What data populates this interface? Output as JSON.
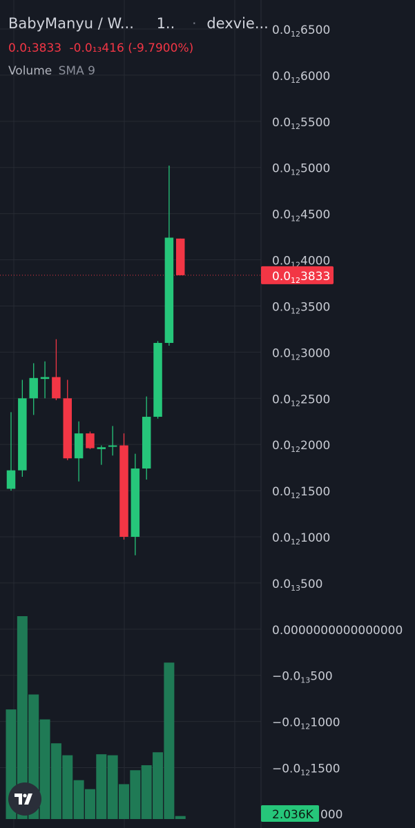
{
  "header": {
    "pair": "BabyManyu / W...",
    "interval": "1..",
    "source": "dexvie...",
    "price": "0.0₁3833",
    "change": "-0.0₁₃416",
    "change_pct": "(-9.7900%)",
    "volume_label": "Volume",
    "sma_label": "SMA 9"
  },
  "colors": {
    "background": "#161a23",
    "up": "#26c67a",
    "down": "#f23645",
    "volume_up": "#1f7a55",
    "volume_down": "#8a2b33",
    "grid": "#262a33",
    "text": "#d1d4dc",
    "axis_text": "#c8cbd3"
  },
  "price_axis": {
    "ticks": [
      {
        "value": 6500,
        "lead": "0.0",
        "sub": "12",
        "tail": "6500"
      },
      {
        "value": 6000,
        "lead": "0.0",
        "sub": "12",
        "tail": "6000"
      },
      {
        "value": 5500,
        "lead": "0.0",
        "sub": "12",
        "tail": "5500"
      },
      {
        "value": 5000,
        "lead": "0.0",
        "sub": "12",
        "tail": "5000"
      },
      {
        "value": 4500,
        "lead": "0.0",
        "sub": "12",
        "tail": "4500"
      },
      {
        "value": 4000,
        "lead": "0.0",
        "sub": "12",
        "tail": "4000"
      },
      {
        "value": 3500,
        "lead": "0.0",
        "sub": "12",
        "tail": "3500"
      },
      {
        "value": 3000,
        "lead": "0.0",
        "sub": "12",
        "tail": "3000"
      },
      {
        "value": 2500,
        "lead": "0.0",
        "sub": "12",
        "tail": "2500"
      },
      {
        "value": 2000,
        "lead": "0.0",
        "sub": "12",
        "tail": "2000"
      },
      {
        "value": 1500,
        "lead": "0.0",
        "sub": "12",
        "tail": "1500"
      },
      {
        "value": 1000,
        "lead": "0.0",
        "sub": "12",
        "tail": "1000"
      },
      {
        "value": 500,
        "lead": "0.0",
        "sub": "13",
        "tail": "500"
      },
      {
        "value": 0,
        "lead": "0.0000000000000000",
        "sub": "",
        "tail": ""
      },
      {
        "value": -500,
        "lead": "−0.0",
        "sub": "13",
        "tail": "500"
      },
      {
        "value": -1000,
        "lead": "−0.0",
        "sub": "12",
        "tail": "1000"
      },
      {
        "value": -1500,
        "lead": "−0.0",
        "sub": "12",
        "tail": "1500"
      }
    ],
    "current_price": {
      "value": 3833,
      "lead": "0.0",
      "sub": "12",
      "tail": "3833"
    },
    "volume_tag": "2.036K",
    "volume_tag_tail": "000"
  },
  "chart_data": {
    "type": "candlestick",
    "price_unit_note": "values in units of 1e-16",
    "ylim": [
      -1500,
      6500
    ],
    "candles": [
      {
        "o": 1520,
        "h": 2350,
        "l": 1500,
        "c": 1720,
        "vol": 1100
      },
      {
        "o": 1720,
        "h": 2700,
        "l": 1650,
        "c": 2500,
        "vol": 2036
      },
      {
        "o": 2500,
        "h": 2880,
        "l": 2320,
        "c": 2720,
        "vol": 1250
      },
      {
        "o": 2710,
        "h": 2900,
        "l": 2500,
        "c": 2730,
        "vol": 1000
      },
      {
        "o": 2730,
        "h": 3140,
        "l": 2480,
        "c": 2500,
        "vol": 760
      },
      {
        "o": 2500,
        "h": 2700,
        "l": 1830,
        "c": 1850,
        "vol": 640
      },
      {
        "o": 1850,
        "h": 2250,
        "l": 1600,
        "c": 2120,
        "vol": 390
      },
      {
        "o": 2120,
        "h": 2140,
        "l": 1950,
        "c": 1960,
        "vol": 300
      },
      {
        "o": 1950,
        "h": 1990,
        "l": 1780,
        "c": 1970,
        "vol": 650
      },
      {
        "o": 1980,
        "h": 2200,
        "l": 1880,
        "c": 1990,
        "vol": 640
      },
      {
        "o": 1990,
        "h": 2120,
        "l": 970,
        "c": 1000,
        "vol": 350
      },
      {
        "o": 1000,
        "h": 1900,
        "l": 800,
        "c": 1740,
        "vol": 490
      },
      {
        "o": 1740,
        "h": 2520,
        "l": 1620,
        "c": 2300,
        "vol": 540
      },
      {
        "o": 2300,
        "h": 3120,
        "l": 2280,
        "c": 3100,
        "vol": 670
      },
      {
        "o": 3100,
        "h": 5020,
        "l": 3070,
        "c": 4240,
        "vol": 1570
      },
      {
        "o": 4230,
        "h": 4230,
        "l": 3833,
        "c": 3833,
        "vol": 30
      }
    ]
  }
}
